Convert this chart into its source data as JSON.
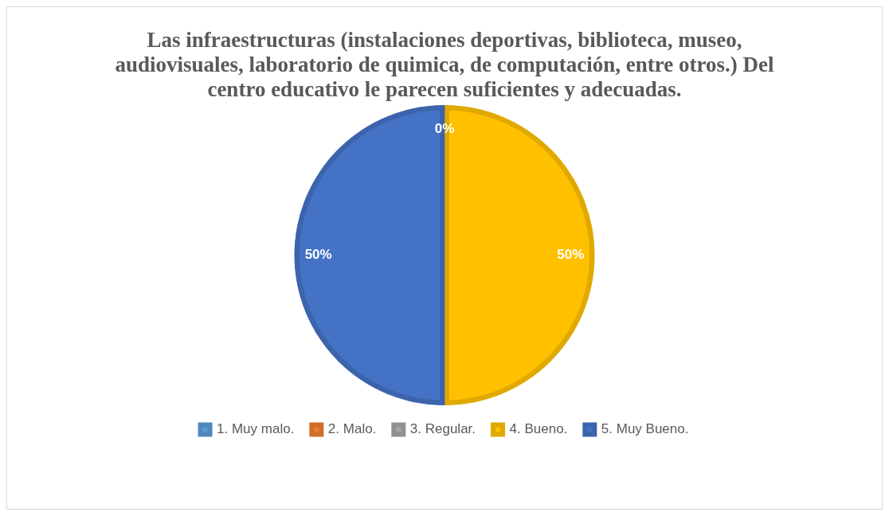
{
  "chart_data": {
    "type": "pie",
    "title": "Las infraestructuras (instalaciones deportivas, biblioteca, museo, audiovisuales, laboratorio de quimica, de computación, entre otros.) Del centro educativo le parecen suficientes y adecuadas.",
    "categories": [
      "1. Muy malo.",
      "2. Malo.",
      "3. Regular.",
      "4. Bueno.",
      "5. Muy Bueno."
    ],
    "values": [
      0,
      0,
      0,
      50,
      50
    ],
    "colors": [
      "#5b9bd5",
      "#ed7d31",
      "#a5a5a5",
      "#ffc000",
      "#4472c4"
    ],
    "value_labels": [
      "0%",
      null,
      null,
      "50%",
      "50%"
    ],
    "legend": "bottom"
  }
}
